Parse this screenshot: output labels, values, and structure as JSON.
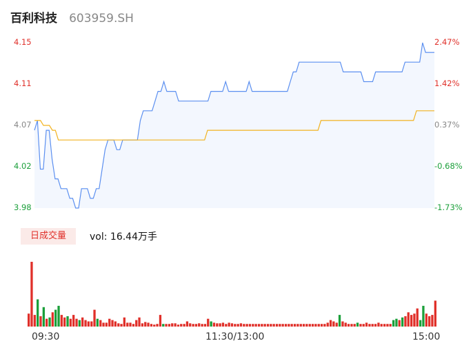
{
  "header": {
    "name": "百利科技",
    "code": "603959.SH"
  },
  "volume_panel": {
    "tab_label": "日成交量",
    "vol_text": "vol: 16.44万手"
  },
  "colors": {
    "price": "#5b8ff0",
    "avg": "#f2b21e",
    "up": "#e0302a",
    "down": "#1b9f3a",
    "flat": "#888888"
  },
  "chart_data": [
    {
      "type": "line",
      "y_left_ticks": [
        "4.15",
        "4.11",
        "4.07",
        "4.02",
        "3.98"
      ],
      "y_right_ticks": [
        "2.47%",
        "1.42%",
        "0.37%",
        "-0.68%",
        "-1.73%"
      ],
      "x_ticks": [
        "09:30",
        "11:30/13:00",
        "15:00"
      ],
      "ylim": [
        3.98,
        4.15
      ],
      "series": [
        {
          "values": [
            4.06,
            4.07,
            4.02,
            4.02,
            4.06,
            4.06,
            4.03,
            4.01,
            4.01,
            4.0,
            4.0,
            4.0,
            3.99,
            3.99,
            3.98,
            3.98,
            4.0,
            4.0,
            4.0,
            3.99,
            3.99,
            4.0,
            4.0,
            4.02,
            4.04,
            4.05,
            4.05,
            4.05,
            4.04,
            4.04,
            4.05,
            4.05,
            4.05,
            4.05,
            4.05,
            4.05,
            4.07,
            4.08,
            4.08,
            4.08,
            4.08,
            4.09,
            4.1,
            4.1,
            4.11,
            4.1,
            4.1,
            4.1,
            4.1,
            4.09,
            4.09,
            4.09,
            4.09,
            4.09,
            4.09,
            4.09,
            4.09,
            4.09,
            4.09,
            4.09,
            4.1,
            4.1,
            4.1,
            4.1,
            4.1,
            4.11,
            4.1,
            4.1,
            4.1,
            4.1,
            4.1,
            4.1,
            4.1,
            4.11,
            4.1,
            4.1,
            4.1,
            4.1,
            4.1,
            4.1,
            4.1,
            4.1,
            4.1,
            4.1,
            4.1,
            4.1,
            4.1,
            4.11,
            4.12,
            4.12,
            4.13,
            4.13,
            4.13,
            4.13,
            4.13,
            4.13,
            4.13,
            4.13,
            4.13,
            4.13,
            4.13,
            4.13,
            4.13,
            4.13,
            4.13,
            4.12,
            4.12,
            4.12,
            4.12,
            4.12,
            4.12,
            4.12,
            4.11,
            4.11,
            4.11,
            4.11,
            4.12,
            4.12,
            4.12,
            4.12,
            4.12,
            4.12,
            4.12,
            4.12,
            4.12,
            4.12,
            4.13,
            4.13,
            4.13,
            4.13,
            4.13,
            4.13,
            4.15,
            4.14,
            4.14,
            4.14,
            4.14
          ],
          "x_fraction_step": 0.0074
        },
        {
          "values": [
            4.07,
            4.07,
            4.07,
            4.065,
            4.065,
            4.065,
            4.06,
            4.06,
            4.05,
            4.05,
            4.05,
            4.05,
            4.05,
            4.05,
            4.05,
            4.05,
            4.05,
            4.05,
            4.05,
            4.05,
            4.05,
            4.05,
            4.05,
            4.05,
            4.05,
            4.05,
            4.05,
            4.05,
            4.05,
            4.05,
            4.05,
            4.05,
            4.05,
            4.05,
            4.05,
            4.05,
            4.05,
            4.05,
            4.05,
            4.05,
            4.05,
            4.05,
            4.05,
            4.05,
            4.05,
            4.05,
            4.05,
            4.05,
            4.05,
            4.05,
            4.05,
            4.05,
            4.05,
            4.05,
            4.05,
            4.05,
            4.05,
            4.05,
            4.06,
            4.06,
            4.06,
            4.06,
            4.06,
            4.06,
            4.06,
            4.06,
            4.06,
            4.06,
            4.06,
            4.06,
            4.06,
            4.06,
            4.06,
            4.06,
            4.06,
            4.06,
            4.06,
            4.06,
            4.06,
            4.06,
            4.06,
            4.06,
            4.06,
            4.06,
            4.06,
            4.06,
            4.06,
            4.06,
            4.06,
            4.06,
            4.06,
            4.06,
            4.06,
            4.06,
            4.06,
            4.06,
            4.07,
            4.07,
            4.07,
            4.07,
            4.07,
            4.07,
            4.07,
            4.07,
            4.07,
            4.07,
            4.07,
            4.07,
            4.07,
            4.07,
            4.07,
            4.07,
            4.07,
            4.07,
            4.07,
            4.07,
            4.07,
            4.07,
            4.07,
            4.07,
            4.07,
            4.07,
            4.07,
            4.07,
            4.07,
            4.07,
            4.07,
            4.07,
            4.08,
            4.08,
            4.08,
            4.08,
            4.08,
            4.08,
            4.08
          ]
        }
      ]
    },
    {
      "type": "bar",
      "bars": [
        {
          "v": 0.2,
          "c": "up"
        },
        {
          "v": 1.0,
          "c": "up"
        },
        {
          "v": 0.18,
          "c": "up"
        },
        {
          "v": 0.42,
          "c": "down"
        },
        {
          "v": 0.16,
          "c": "up"
        },
        {
          "v": 0.3,
          "c": "down"
        },
        {
          "v": 0.12,
          "c": "up"
        },
        {
          "v": 0.14,
          "c": "down"
        },
        {
          "v": 0.22,
          "c": "up"
        },
        {
          "v": 0.26,
          "c": "down"
        },
        {
          "v": 0.32,
          "c": "down"
        },
        {
          "v": 0.18,
          "c": "up"
        },
        {
          "v": 0.14,
          "c": "up"
        },
        {
          "v": 0.16,
          "c": "down"
        },
        {
          "v": 0.12,
          "c": "up"
        },
        {
          "v": 0.18,
          "c": "up"
        },
        {
          "v": 0.12,
          "c": "up"
        },
        {
          "v": 0.1,
          "c": "down"
        },
        {
          "v": 0.14,
          "c": "up"
        },
        {
          "v": 0.1,
          "c": "up"
        },
        {
          "v": 0.08,
          "c": "up"
        },
        {
          "v": 0.08,
          "c": "up"
        },
        {
          "v": 0.26,
          "c": "up"
        },
        {
          "v": 0.12,
          "c": "down"
        },
        {
          "v": 0.1,
          "c": "up"
        },
        {
          "v": 0.06,
          "c": "up"
        },
        {
          "v": 0.06,
          "c": "up"
        },
        {
          "v": 0.12,
          "c": "up"
        },
        {
          "v": 0.1,
          "c": "up"
        },
        {
          "v": 0.08,
          "c": "up"
        },
        {
          "v": 0.05,
          "c": "up"
        },
        {
          "v": 0.04,
          "c": "up"
        },
        {
          "v": 0.14,
          "c": "up"
        },
        {
          "v": 0.06,
          "c": "up"
        },
        {
          "v": 0.06,
          "c": "up"
        },
        {
          "v": 0.04,
          "c": "up"
        },
        {
          "v": 0.1,
          "c": "up"
        },
        {
          "v": 0.14,
          "c": "up"
        },
        {
          "v": 0.05,
          "c": "up"
        },
        {
          "v": 0.07,
          "c": "up"
        },
        {
          "v": 0.06,
          "c": "up"
        },
        {
          "v": 0.04,
          "c": "up"
        },
        {
          "v": 0.03,
          "c": "up"
        },
        {
          "v": 0.04,
          "c": "up"
        },
        {
          "v": 0.18,
          "c": "up"
        },
        {
          "v": 0.04,
          "c": "down"
        },
        {
          "v": 0.04,
          "c": "up"
        },
        {
          "v": 0.04,
          "c": "up"
        },
        {
          "v": 0.05,
          "c": "up"
        },
        {
          "v": 0.05,
          "c": "up"
        },
        {
          "v": 0.03,
          "c": "up"
        },
        {
          "v": 0.04,
          "c": "up"
        },
        {
          "v": 0.04,
          "c": "up"
        },
        {
          "v": 0.08,
          "c": "up"
        },
        {
          "v": 0.05,
          "c": "up"
        },
        {
          "v": 0.04,
          "c": "up"
        },
        {
          "v": 0.04,
          "c": "up"
        },
        {
          "v": 0.05,
          "c": "up"
        },
        {
          "v": 0.04,
          "c": "up"
        },
        {
          "v": 0.04,
          "c": "up"
        },
        {
          "v": 0.12,
          "c": "up"
        },
        {
          "v": 0.08,
          "c": "down"
        },
        {
          "v": 0.06,
          "c": "up"
        },
        {
          "v": 0.05,
          "c": "up"
        },
        {
          "v": 0.05,
          "c": "up"
        },
        {
          "v": 0.06,
          "c": "up"
        },
        {
          "v": 0.04,
          "c": "up"
        },
        {
          "v": 0.06,
          "c": "up"
        },
        {
          "v": 0.05,
          "c": "up"
        },
        {
          "v": 0.04,
          "c": "up"
        },
        {
          "v": 0.04,
          "c": "up"
        },
        {
          "v": 0.05,
          "c": "up"
        },
        {
          "v": 0.04,
          "c": "up"
        },
        {
          "v": 0.04,
          "c": "up"
        },
        {
          "v": 0.04,
          "c": "up"
        },
        {
          "v": 0.04,
          "c": "up"
        },
        {
          "v": 0.04,
          "c": "up"
        },
        {
          "v": 0.04,
          "c": "up"
        },
        {
          "v": 0.04,
          "c": "up"
        },
        {
          "v": 0.04,
          "c": "up"
        },
        {
          "v": 0.04,
          "c": "up"
        },
        {
          "v": 0.04,
          "c": "up"
        },
        {
          "v": 0.04,
          "c": "up"
        },
        {
          "v": 0.04,
          "c": "up"
        },
        {
          "v": 0.04,
          "c": "up"
        },
        {
          "v": 0.04,
          "c": "up"
        },
        {
          "v": 0.04,
          "c": "up"
        },
        {
          "v": 0.04,
          "c": "up"
        },
        {
          "v": 0.04,
          "c": "up"
        },
        {
          "v": 0.04,
          "c": "up"
        },
        {
          "v": 0.04,
          "c": "up"
        },
        {
          "v": 0.04,
          "c": "up"
        },
        {
          "v": 0.04,
          "c": "up"
        },
        {
          "v": 0.04,
          "c": "up"
        },
        {
          "v": 0.04,
          "c": "up"
        },
        {
          "v": 0.04,
          "c": "up"
        },
        {
          "v": 0.04,
          "c": "up"
        },
        {
          "v": 0.04,
          "c": "up"
        },
        {
          "v": 0.04,
          "c": "up"
        },
        {
          "v": 0.04,
          "c": "up"
        },
        {
          "v": 0.06,
          "c": "up"
        },
        {
          "v": 0.1,
          "c": "up"
        },
        {
          "v": 0.08,
          "c": "up"
        },
        {
          "v": 0.06,
          "c": "up"
        },
        {
          "v": 0.18,
          "c": "down"
        },
        {
          "v": 0.08,
          "c": "up"
        },
        {
          "v": 0.06,
          "c": "up"
        },
        {
          "v": 0.04,
          "c": "up"
        },
        {
          "v": 0.04,
          "c": "up"
        },
        {
          "v": 0.04,
          "c": "up"
        },
        {
          "v": 0.06,
          "c": "down"
        },
        {
          "v": 0.04,
          "c": "up"
        },
        {
          "v": 0.04,
          "c": "up"
        },
        {
          "v": 0.06,
          "c": "up"
        },
        {
          "v": 0.04,
          "c": "up"
        },
        {
          "v": 0.04,
          "c": "up"
        },
        {
          "v": 0.04,
          "c": "up"
        },
        {
          "v": 0.06,
          "c": "up"
        },
        {
          "v": 0.04,
          "c": "up"
        },
        {
          "v": 0.04,
          "c": "up"
        },
        {
          "v": 0.04,
          "c": "up"
        },
        {
          "v": 0.04,
          "c": "up"
        },
        {
          "v": 0.1,
          "c": "down"
        },
        {
          "v": 0.12,
          "c": "down"
        },
        {
          "v": 0.1,
          "c": "up"
        },
        {
          "v": 0.14,
          "c": "down"
        },
        {
          "v": 0.16,
          "c": "up"
        },
        {
          "v": 0.22,
          "c": "up"
        },
        {
          "v": 0.18,
          "c": "up"
        },
        {
          "v": 0.2,
          "c": "up"
        },
        {
          "v": 0.28,
          "c": "up"
        },
        {
          "v": 0.1,
          "c": "down"
        },
        {
          "v": 0.32,
          "c": "down"
        },
        {
          "v": 0.2,
          "c": "up"
        },
        {
          "v": 0.16,
          "c": "up"
        },
        {
          "v": 0.18,
          "c": "up"
        },
        {
          "v": 0.4,
          "c": "up"
        }
      ]
    }
  ]
}
